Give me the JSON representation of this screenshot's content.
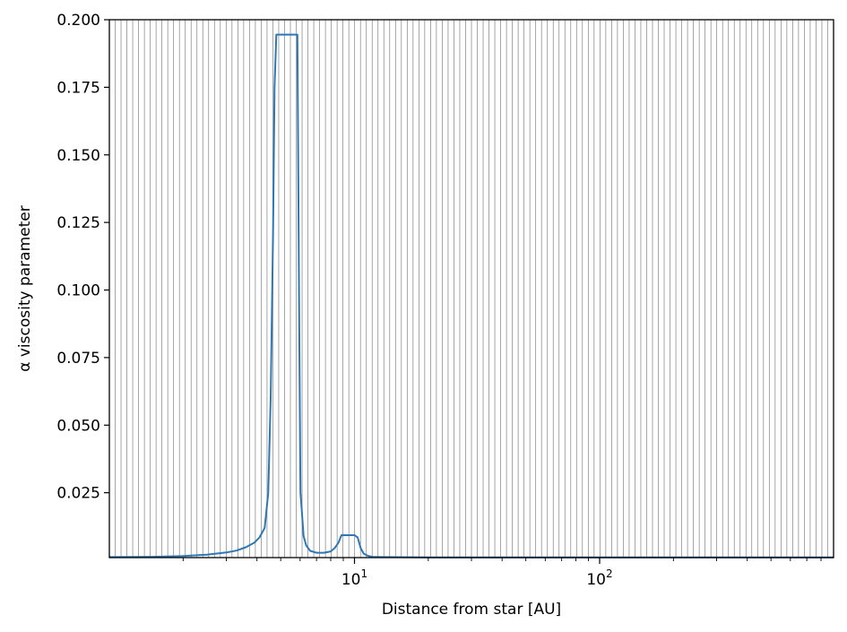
{
  "chart_data": {
    "type": "line",
    "title": "",
    "xlabel": "Distance from star [AU]",
    "ylabel": "α viscosity parameter",
    "xscale": "log",
    "xlim": [
      1.0,
      900
    ],
    "ylim": [
      0.001,
      0.2
    ],
    "grid": "vertical lines at every radial grid cell, gray",
    "x_tick_labels": [
      {
        "value": 10,
        "base": "10",
        "exp": "1"
      },
      {
        "value": 100,
        "base": "10",
        "exp": "2"
      }
    ],
    "y_ticks": [
      0.025,
      0.05,
      0.075,
      0.1,
      0.125,
      0.15,
      0.175,
      0.2
    ],
    "y_tick_labels": [
      "0.025",
      "0.050",
      "0.075",
      "0.100",
      "0.125",
      "0.150",
      "0.175",
      "0.200"
    ],
    "colors": {
      "line": "#2f77b4",
      "grid": "#808080"
    },
    "series": [
      {
        "x": [
          1.0,
          1.5,
          2.0,
          2.5,
          3.0,
          3.3,
          3.6,
          3.9,
          4.1,
          4.3,
          4.45,
          4.55,
          4.65,
          4.72,
          4.8,
          5.0,
          5.3,
          5.6,
          5.85,
          5.95,
          6.02,
          6.1,
          6.2,
          6.35,
          6.6,
          7.0,
          7.5,
          8.0,
          8.3,
          8.6,
          8.85,
          9.1,
          9.5,
          10.0,
          10.3,
          10.6,
          10.9,
          11.3,
          11.8,
          13.0,
          20.0,
          50.0,
          100.0,
          300.0,
          900.0
        ],
        "y": [
          0.0012,
          0.0013,
          0.0016,
          0.0021,
          0.0029,
          0.0036,
          0.0048,
          0.0065,
          0.0085,
          0.012,
          0.025,
          0.06,
          0.12,
          0.175,
          0.1945,
          0.1945,
          0.1945,
          0.1945,
          0.1945,
          0.09,
          0.025,
          0.018,
          0.009,
          0.0055,
          0.0035,
          0.0028,
          0.0028,
          0.0033,
          0.0045,
          0.0065,
          0.0093,
          0.0093,
          0.0093,
          0.0093,
          0.0085,
          0.0045,
          0.0025,
          0.0017,
          0.0013,
          0.0012,
          0.0011,
          0.0011,
          0.0011,
          0.0011,
          0.0011
        ]
      }
    ]
  }
}
